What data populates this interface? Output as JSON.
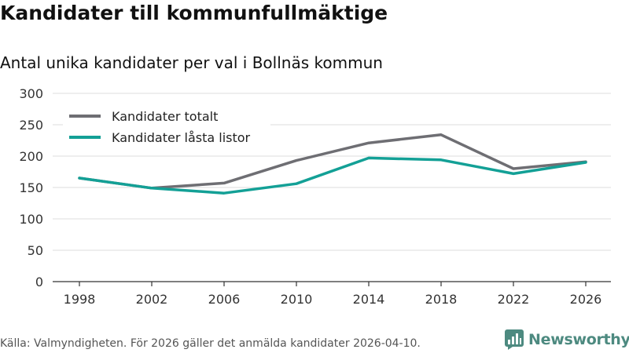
{
  "header": {
    "title": "Kandidater till kommunfullmäktige",
    "subtitle": "Antal unika kandidater per val i Bollnäs kommun"
  },
  "footer": {
    "source": "Källa: Valmyndigheten. För 2026 gäller det anmälda kandidater 2026-04-10.",
    "brand_name": "Newsworthy",
    "brand_color": "#4d8a80"
  },
  "chart_data": {
    "type": "line",
    "title": "Kandidater till kommunfullmäktige",
    "subtitle": "Antal unika kandidater per val i Bollnäs kommun",
    "xlabel": "",
    "ylabel": "",
    "categories": [
      "1998",
      "2002",
      "2006",
      "2010",
      "2014",
      "2018",
      "2022",
      "2026"
    ],
    "ylim": [
      0,
      300
    ],
    "yticks": [
      0,
      50,
      100,
      150,
      200,
      250,
      300
    ],
    "grid": true,
    "legend_position": "top-left",
    "series": [
      {
        "name": "Kandidater totalt",
        "color": "#6e6e73",
        "values": [
          165,
          149,
          157,
          193,
          221,
          234,
          180,
          191
        ]
      },
      {
        "name": "Kandidater låsta listor",
        "color": "#13a096",
        "values": [
          165,
          149,
          141,
          156,
          197,
          194,
          172,
          190
        ]
      }
    ]
  }
}
